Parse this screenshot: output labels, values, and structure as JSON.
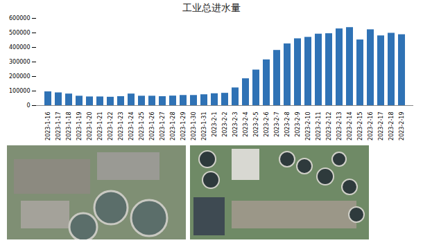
{
  "chart_data": {
    "type": "bar",
    "title": "工业总进水量",
    "categories": [
      "2023-1-16",
      "2023-1-17",
      "2023-1-18",
      "2023-1-19",
      "2023-1-20",
      "2023-1-21",
      "2023-1-22",
      "2023-1-23",
      "2023-1-24",
      "2023-1-25",
      "2023-1-26",
      "2023-1-27",
      "2023-1-28",
      "2023-1-29",
      "2023-1-30",
      "2023-1-31",
      "2023-2-1",
      "2023-2-2",
      "2023-2-3",
      "2023-2-4",
      "2023-2-5",
      "2023-2-6",
      "2023-2-7",
      "2023-2-8",
      "2023-2-9",
      "2023-2-10",
      "2023-2-11",
      "2023-2-12",
      "2023-2-13",
      "2023-2-14",
      "2023-2-15",
      "2023-2-16",
      "2023-2-17",
      "2023-2-18",
      "2023-2-19"
    ],
    "values": [
      95000,
      88000,
      80000,
      65000,
      60000,
      60000,
      58000,
      62000,
      80000,
      65000,
      65000,
      62000,
      66000,
      70000,
      70000,
      75000,
      82000,
      85000,
      122000,
      185000,
      245000,
      315000,
      380000,
      425000,
      460000,
      470000,
      492000,
      495000,
      528000,
      537000,
      452000,
      522000,
      480000,
      498000,
      488000
    ],
    "color": "#2f72b5",
    "ylim": [
      0,
      600000
    ],
    "yticks": [
      0,
      100000,
      200000,
      300000,
      400000,
      500000,
      600000
    ],
    "grid": false
  }
}
